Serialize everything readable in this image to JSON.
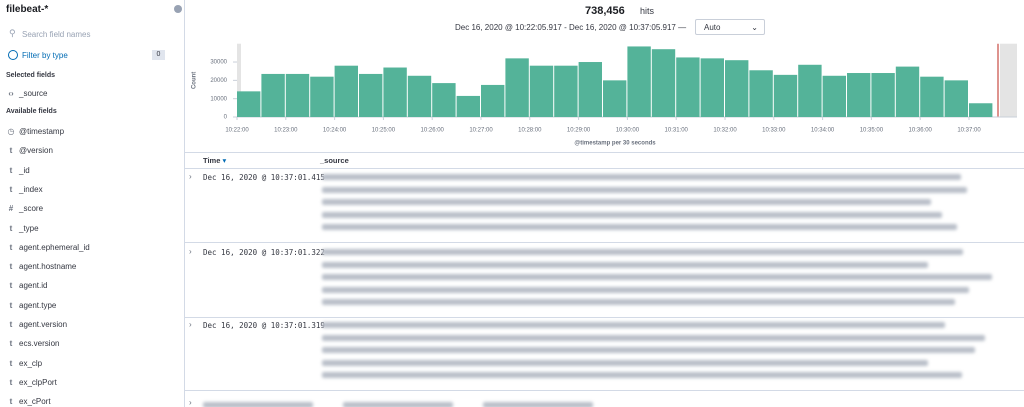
{
  "sidebar": {
    "index_pattern": "filebeat-*",
    "search_placeholder": "Search field names",
    "filter_label": "Filter by type",
    "filter_count": 0,
    "selected_heading": "Selected fields",
    "selected_fields": [
      {
        "type": "‹›",
        "name": "_source"
      }
    ],
    "available_heading": "Available fields",
    "available_fields": [
      {
        "type": "◷",
        "name": "@timestamp"
      },
      {
        "type": "t",
        "name": "@version"
      },
      {
        "type": "t",
        "name": "_id"
      },
      {
        "type": "t",
        "name": "_index"
      },
      {
        "type": "#",
        "name": "_score"
      },
      {
        "type": "t",
        "name": "_type"
      },
      {
        "type": "t",
        "name": "agent.ephemeral_id"
      },
      {
        "type": "t",
        "name": "agent.hostname"
      },
      {
        "type": "t",
        "name": "agent.id"
      },
      {
        "type": "t",
        "name": "agent.type"
      },
      {
        "type": "t",
        "name": "agent.version"
      },
      {
        "type": "t",
        "name": "ecs.version"
      },
      {
        "type": "t",
        "name": "ex_clp"
      },
      {
        "type": "t",
        "name": "ex_clpPort"
      },
      {
        "type": "t",
        "name": "ex_cPort"
      }
    ]
  },
  "header": {
    "hits_count": "738,456",
    "hits_label": "hits",
    "time_range": "Dec 16, 2020 @ 10:22:05.917 - Dec 16, 2020 @ 10:37:05.917 —",
    "interval": "Auto"
  },
  "chart_data": {
    "type": "bar",
    "y_label": "Count",
    "x_label": "@timestamp per 30 seconds",
    "color": "#54b399",
    "categories": [
      "10:22:00",
      null,
      "10:23:00",
      null,
      "10:24:00",
      null,
      "10:25:00",
      null,
      "10:26:00",
      null,
      "10:27:00",
      null,
      "10:28:00",
      null,
      "10:29:00",
      null,
      "10:30:00",
      null,
      "10:31:00",
      null,
      "10:32:00",
      null,
      "10:33:00",
      null,
      "10:34:00",
      null,
      "10:35:00",
      null,
      "10:36:00",
      null,
      "10:37:00"
    ],
    "values": [
      14000,
      23500,
      23500,
      22000,
      28000,
      23500,
      27000,
      22500,
      18500,
      11500,
      17500,
      32000,
      28000,
      28000,
      30000,
      20000,
      38500,
      37000,
      32500,
      32000,
      31000,
      25500,
      23000,
      28500,
      22500,
      24000,
      24000,
      27500,
      22000,
      20000,
      7500
    ],
    "ylim": [
      0,
      40000
    ],
    "yticks": [
      0,
      10000,
      20000,
      30000
    ]
  },
  "table": {
    "columns": [
      "Time",
      "_source"
    ],
    "rows": [
      "Dec 16, 2020 @ 10:37:01.415",
      "Dec 16, 2020 @ 10:37:01.322",
      "Dec 16, 2020 @ 10:37:01.319"
    ]
  }
}
